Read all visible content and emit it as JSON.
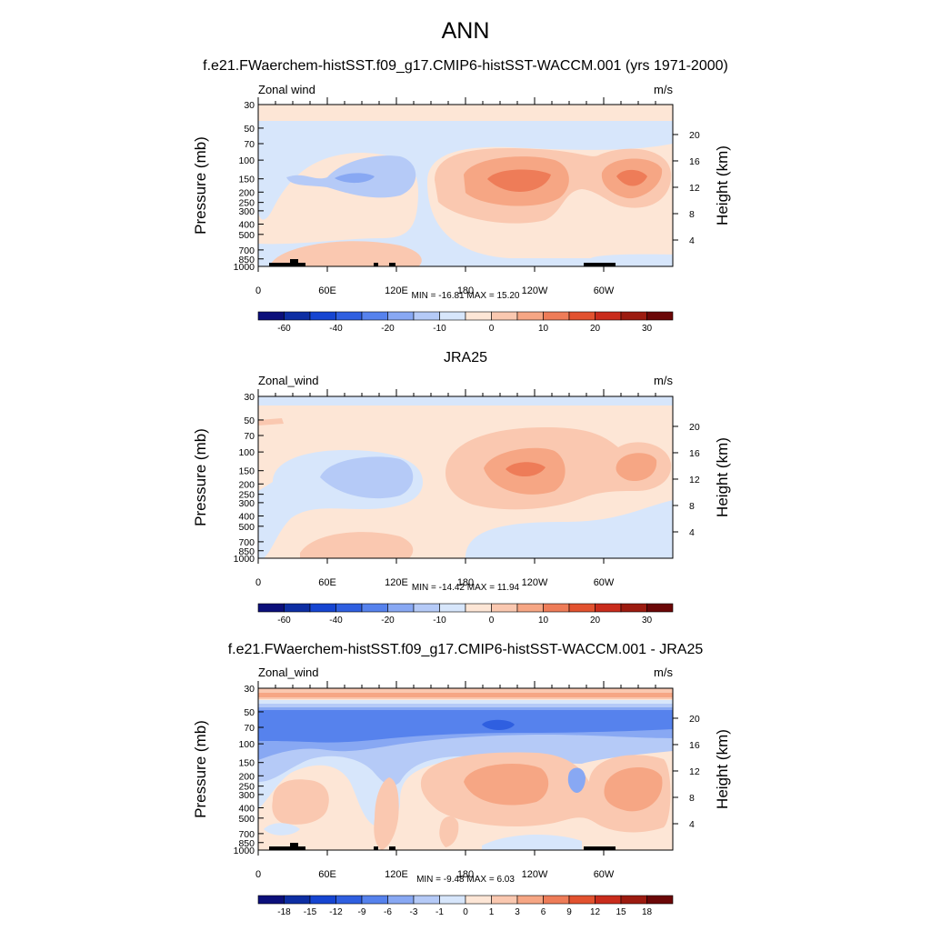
{
  "page_title": "ANN",
  "chart_data": [
    {
      "type": "heatmap",
      "title": "f.e21.FWaerchem-histSST.f09_g17.CMIP6-histSST-WACCM.001 (yrs 1971-2000)",
      "left_title": "Zonal wind",
      "units": "m/s",
      "ylabel": "Pressure (mb)",
      "ylabel_right": "Height (km)",
      "x_ticks": [
        "0",
        "60E",
        "120E",
        "180",
        "120W",
        "60W"
      ],
      "y_ticks": [
        "30",
        "50",
        "70",
        "100",
        "150",
        "200",
        "250",
        "300",
        "400",
        "500",
        "700",
        "850",
        "1000"
      ],
      "y_ticks_right": [
        "20",
        "16",
        "12",
        "8",
        "4"
      ],
      "minmax": "MIN = -16.81  MAX =  15.20",
      "colorbar_labels": [
        "-60",
        "-40",
        "-20",
        "-10",
        "0",
        "10",
        "20",
        "30"
      ]
    },
    {
      "type": "heatmap",
      "title": "JRA25",
      "left_title": "Zonal_wind",
      "units": "m/s",
      "ylabel": "Pressure (mb)",
      "ylabel_right": "Height (km)",
      "x_ticks": [
        "0",
        "60E",
        "120E",
        "180",
        "120W",
        "60W"
      ],
      "y_ticks": [
        "30",
        "50",
        "70",
        "100",
        "150",
        "200",
        "250",
        "300",
        "400",
        "500",
        "700",
        "850",
        "1000"
      ],
      "y_ticks_right": [
        "20",
        "16",
        "12",
        "8",
        "4"
      ],
      "minmax": "MIN = -14.42  MAX =  11.94",
      "colorbar_labels": [
        "-60",
        "-40",
        "-20",
        "-10",
        "0",
        "10",
        "20",
        "30"
      ]
    },
    {
      "type": "heatmap",
      "title": "f.e21.FWaerchem-histSST.f09_g17.CMIP6-histSST-WACCM.001 - JRA25",
      "left_title": "Zonal_wind",
      "units": "m/s",
      "ylabel": "Pressure (mb)",
      "ylabel_right": "Height (km)",
      "x_ticks": [
        "0",
        "60E",
        "120E",
        "180",
        "120W",
        "60W"
      ],
      "y_ticks": [
        "30",
        "50",
        "70",
        "100",
        "150",
        "200",
        "250",
        "300",
        "400",
        "500",
        "700",
        "850",
        "1000"
      ],
      "y_ticks_right": [
        "20",
        "16",
        "12",
        "8",
        "4"
      ],
      "minmax": "MIN =  -9.48  MAX =   6.03",
      "colorbar_labels": [
        "-18",
        "-15",
        "-12",
        "-9",
        "-6",
        "-3",
        "-1",
        "0",
        "1",
        "3",
        "6",
        "9",
        "12",
        "15",
        "18"
      ]
    }
  ],
  "colors": {
    "palette": [
      "#0b0f7a",
      "#0d2ea3",
      "#1645d1",
      "#2f5fe0",
      "#5682ed",
      "#88a8f3",
      "#b5caf7",
      "#d7e6fb",
      "#fde6d6",
      "#fac8b0",
      "#f6a684",
      "#ee7c58",
      "#e2522f",
      "#c92c1c",
      "#9c1b10",
      "#6b0707"
    ],
    "land": "#000000"
  }
}
